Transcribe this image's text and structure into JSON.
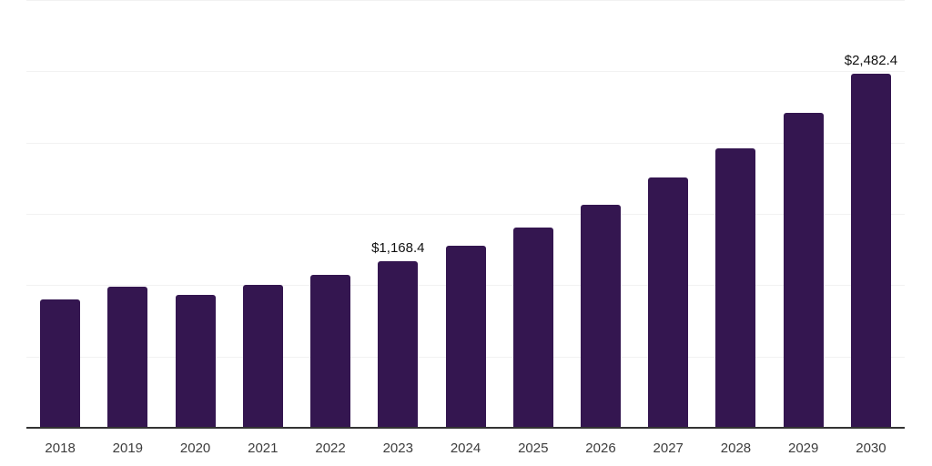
{
  "chart_data": {
    "type": "bar",
    "title": "",
    "xlabel": "",
    "ylabel": "",
    "categories": [
      "2018",
      "2019",
      "2020",
      "2021",
      "2022",
      "2023",
      "2024",
      "2025",
      "2026",
      "2027",
      "2028",
      "2029",
      "2030"
    ],
    "values": [
      899.4,
      990.8,
      931.4,
      1001.7,
      1072.0,
      1168.4,
      1278.5,
      1404.4,
      1566.2,
      1756.0,
      1960.6,
      2207.4,
      2482.4
    ],
    "data_labels": [
      null,
      null,
      null,
      null,
      null,
      "$1,168.4",
      null,
      null,
      null,
      null,
      null,
      null,
      "$2,482.4"
    ],
    "ylim": [
      0,
      3000
    ],
    "grid_step": 500,
    "grid": "horizontal",
    "y_ticks_shown": false,
    "legend": "none",
    "colors": {
      "bar": "#341650",
      "axis_line": "#333333",
      "gridline": "#f2f2f2",
      "tick_label": "#3d3d3d",
      "data_label": "#111111",
      "background": "#ffffff"
    }
  }
}
